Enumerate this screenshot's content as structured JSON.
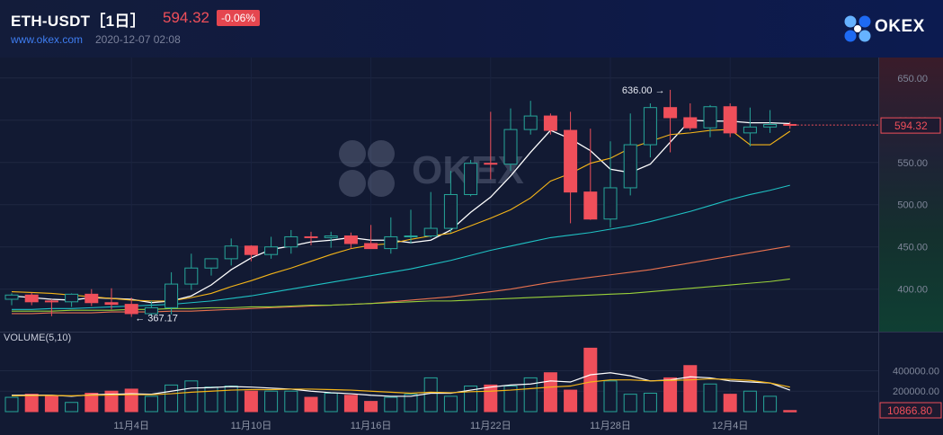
{
  "header": {
    "pair": "ETH-USDT［1日］",
    "price": "594.32",
    "change": "-0.06%",
    "site": "www.okex.com",
    "timestamp": "2020-12-07 02:08",
    "brand": "OKEX"
  },
  "watermark": "OKEX",
  "colors": {
    "up": "#26a69a",
    "down": "#ef4f5a",
    "ma5": "#ffffff",
    "ma10": "#f5b518",
    "ma30": "#1fc2c4",
    "ma60": "#e8724f",
    "ma90": "#9ad13a"
  },
  "chart_data": [
    {
      "type": "candlestick",
      "dates": [
        "2020-10-29",
        "2020-10-30",
        "2020-10-31",
        "2020-11-01",
        "2020-11-02",
        "2020-11-03",
        "2020-11-04",
        "2020-11-05",
        "2020-11-06",
        "2020-11-07",
        "2020-11-08",
        "2020-11-09",
        "2020-11-10",
        "2020-11-11",
        "2020-11-12",
        "2020-11-13",
        "2020-11-14",
        "2020-11-15",
        "2020-11-16",
        "2020-11-17",
        "2020-11-18",
        "2020-11-19",
        "2020-11-20",
        "2020-11-21",
        "2020-11-22",
        "2020-11-23",
        "2020-11-24",
        "2020-11-25",
        "2020-11-26",
        "2020-11-27",
        "2020-11-28",
        "2020-11-29",
        "2020-11-30",
        "2020-12-01",
        "2020-12-02",
        "2020-12-03",
        "2020-12-04",
        "2020-12-05",
        "2020-12-06",
        "2020-12-07"
      ],
      "open": [
        388,
        393,
        386,
        385,
        394,
        384,
        382,
        371,
        378,
        406,
        425,
        436,
        451,
        441,
        450,
        462,
        461,
        463,
        454,
        448,
        462,
        463,
        472,
        512,
        549,
        548,
        589,
        605,
        588,
        515,
        483,
        520,
        571,
        615,
        603,
        591,
        616,
        585,
        592,
        595
      ],
      "high": [
        395,
        396,
        388,
        395,
        400,
        401,
        390,
        386,
        420,
        442,
        436,
        460,
        452,
        462,
        470,
        468,
        468,
        467,
        476,
        485,
        494,
        515,
        540,
        553,
        610,
        614,
        623,
        608,
        610,
        590,
        575,
        608,
        620,
        636,
        620,
        618,
        620,
        615,
        612,
        598
      ],
      "low": [
        381,
        381,
        368,
        379,
        380,
        376,
        367.17,
        368,
        370,
        399,
        416,
        428,
        433,
        436,
        442,
        452,
        449,
        448,
        448,
        442,
        454,
        461,
        467,
        510,
        530,
        540,
        583,
        583,
        478,
        482,
        473,
        511,
        556,
        562,
        588,
        580,
        580,
        569,
        585,
        590
      ],
      "close": [
        393,
        385,
        385,
        394,
        384,
        382,
        371,
        378,
        406,
        425,
        436,
        451,
        441,
        450,
        462,
        461,
        463,
        454,
        448,
        462,
        463,
        472,
        512,
        549,
        548,
        589,
        605,
        588,
        515,
        483,
        520,
        571,
        615,
        603,
        591,
        616,
        585,
        592,
        595,
        594.32
      ],
      "ma_lines": [
        {
          "name": "MA5",
          "values": [
            392,
            390,
            388,
            387,
            390,
            389,
            388,
            384,
            386,
            392,
            405,
            423,
            437,
            447,
            451,
            456,
            458,
            461,
            458,
            458,
            455,
            458,
            470,
            491,
            509,
            534,
            562,
            588,
            578,
            564,
            542,
            538,
            548,
            574,
            600,
            599,
            599,
            597,
            597,
            596
          ]
        },
        {
          "name": "MA10",
          "values": [
            397,
            396,
            395,
            393,
            391,
            389,
            387,
            386,
            386,
            390,
            395,
            403,
            410,
            418,
            425,
            433,
            441,
            448,
            452,
            454,
            459,
            463,
            466,
            475,
            484,
            494,
            508,
            528,
            537,
            549,
            555,
            567,
            575,
            583,
            585,
            588,
            589,
            571,
            571,
            587
          ]
        },
        {
          "name": "MA30",
          "values": [
            376,
            376,
            377,
            377,
            378,
            379,
            380,
            381,
            382,
            384,
            386,
            389,
            392,
            396,
            400,
            404,
            408,
            412,
            416,
            420,
            424,
            429,
            434,
            440,
            446,
            451,
            456,
            461,
            464,
            467,
            471,
            475,
            480,
            486,
            492,
            499,
            506,
            512,
            517,
            523
          ]
        },
        {
          "name": "MA60",
          "values": [
            371,
            371,
            372,
            372,
            372,
            373,
            373,
            373,
            374,
            374,
            375,
            376,
            377,
            378,
            379,
            380,
            381,
            382,
            383,
            385,
            387,
            389,
            391,
            394,
            397,
            400,
            404,
            408,
            411,
            414,
            417,
            420,
            423,
            427,
            431,
            435,
            439,
            443,
            447,
            451
          ]
        },
        {
          "name": "MA90",
          "values": [
            374,
            374,
            374,
            375,
            375,
            375,
            376,
            376,
            377,
            377,
            378,
            378,
            379,
            379,
            380,
            381,
            381,
            382,
            383,
            384,
            385,
            386,
            386,
            387,
            388,
            389,
            390,
            391,
            392,
            393,
            394,
            395,
            397,
            399,
            401,
            403,
            405,
            407,
            409,
            412
          ]
        }
      ],
      "high_label": "636.00 →",
      "low_label": "← 367.17",
      "last_price_label": "594.32",
      "y_ticks": [
        "650.00",
        "600.00",
        "550.00",
        "500.00",
        "450.00",
        "400.00"
      ],
      "y_tick_values": [
        650,
        600,
        550,
        500,
        450,
        400
      ],
      "ylim": [
        355,
        670
      ]
    },
    {
      "type": "bar",
      "title": "VOLUME(5,10)",
      "values": [
        140000,
        170000,
        150000,
        90000,
        180000,
        200000,
        220000,
        150000,
        260000,
        300000,
        240000,
        250000,
        200000,
        200000,
        200000,
        140000,
        180000,
        160000,
        100000,
        140000,
        170000,
        330000,
        150000,
        250000,
        260000,
        250000,
        330000,
        380000,
        210000,
        620000,
        300000,
        170000,
        180000,
        330000,
        450000,
        270000,
        170000,
        200000,
        150000,
        10866.8
      ],
      "ma5": [
        160000,
        162000,
        160000,
        150000,
        165000,
        170000,
        175000,
        170000,
        200000,
        230000,
        235000,
        245000,
        240000,
        230000,
        220000,
        200000,
        185000,
        175000,
        160000,
        150000,
        150000,
        180000,
        180000,
        210000,
        240000,
        260000,
        270000,
        300000,
        290000,
        360000,
        380000,
        350000,
        300000,
        310000,
        340000,
        330000,
        300000,
        290000,
        280000,
        210000
      ],
      "ma10": [
        155000,
        157000,
        158000,
        155000,
        160000,
        162000,
        165000,
        165000,
        175000,
        190000,
        200000,
        210000,
        215000,
        215000,
        220000,
        220000,
        215000,
        210000,
        200000,
        190000,
        180000,
        190000,
        185000,
        195000,
        200000,
        210000,
        225000,
        240000,
        250000,
        290000,
        310000,
        310000,
        300000,
        305000,
        310000,
        320000,
        315000,
        305000,
        280000,
        240000
      ],
      "y_ticks": [
        "400000.00",
        "200000.00"
      ],
      "y_tick_values": [
        400000,
        200000
      ],
      "ylim": [
        0,
        720000
      ],
      "last_value_label": "10866.80"
    }
  ],
  "x_axis": {
    "labels": [
      "11月4日",
      "11月10日",
      "11月16日",
      "11月22日",
      "11月28日",
      "12月4日"
    ],
    "label_indices": [
      6,
      12,
      18,
      24,
      30,
      36
    ]
  }
}
